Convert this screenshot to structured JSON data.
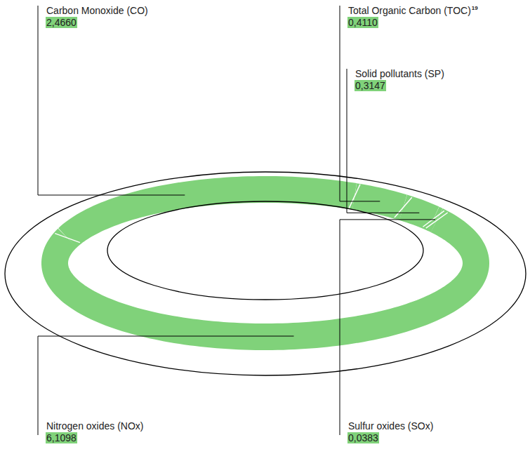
{
  "chart_data": {
    "type": "donut",
    "categories": [
      "Carbon Monoxide (CO)",
      "Total Organic Carbon (TOC)",
      "Solid pollutants (SP)",
      "Sulfur oxides (SOx)",
      "Nitrogen oxides (NOx)"
    ],
    "category_notes": [
      null,
      "19",
      null,
      null,
      null
    ],
    "values": [
      2.466,
      0.411,
      0.3147,
      0.0383,
      6.1098
    ],
    "value_labels": [
      "2,4660",
      "0,4110",
      "0,3147",
      "0,0383",
      "6,1098"
    ],
    "color": "#80d27a",
    "data_labels": true
  }
}
